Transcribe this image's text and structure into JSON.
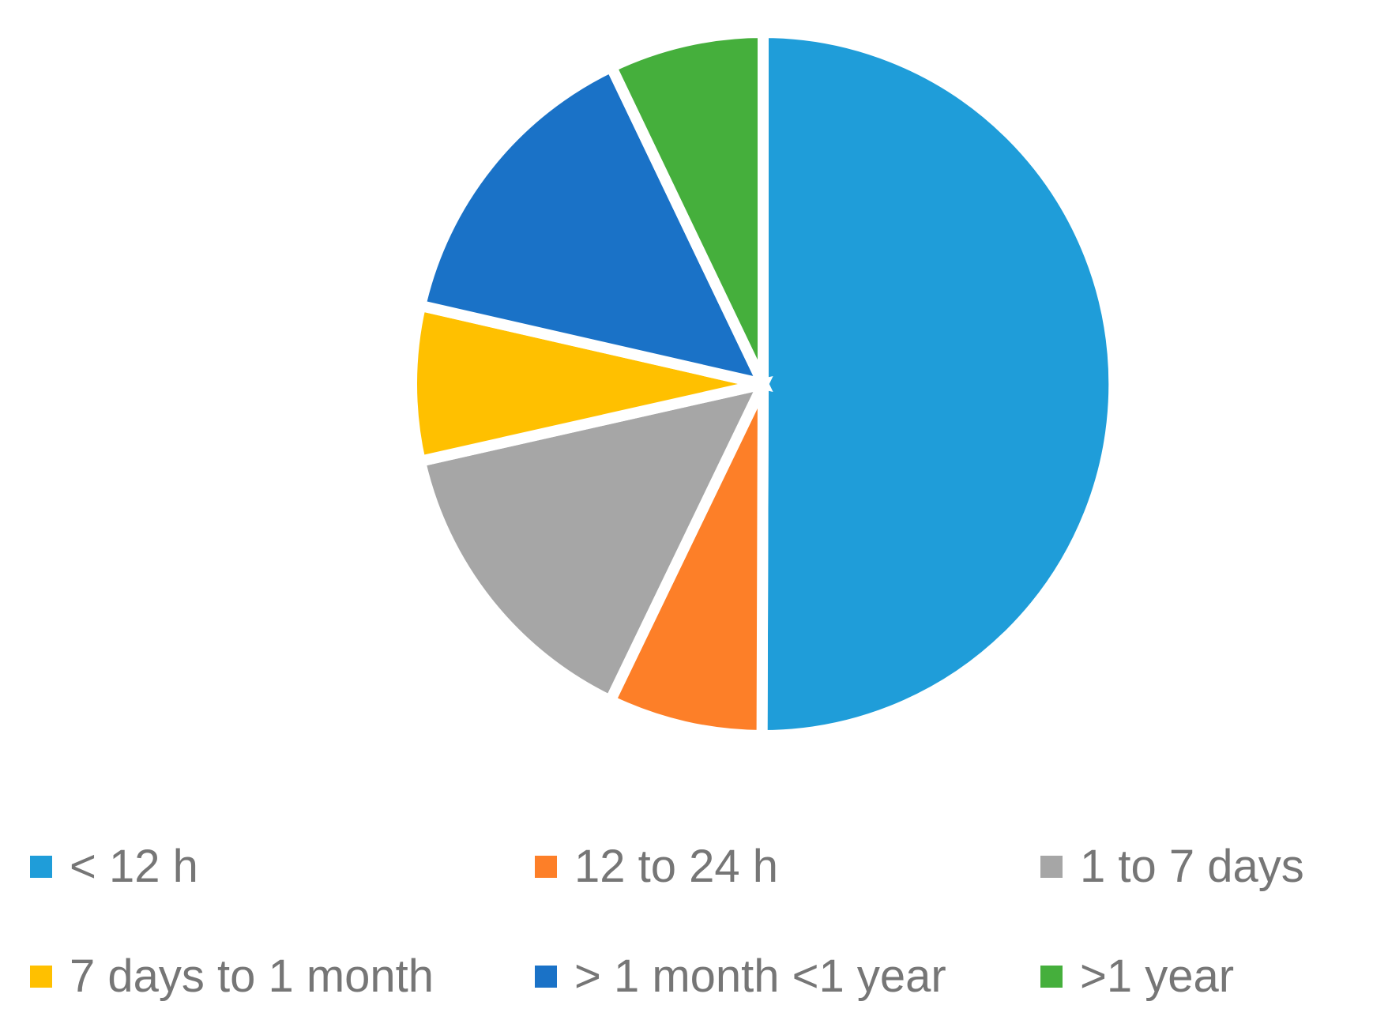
{
  "chart_data": {
    "type": "pie",
    "title": "",
    "categories": [
      "< 12 h",
      "12 to 24 h",
      "1 to 7 days",
      "7 days to 1 month",
      "> 1 month <1 year",
      ">1 year"
    ],
    "values": [
      50,
      7.1,
      14.3,
      7.1,
      14.3,
      7.1
    ],
    "unit": "percent",
    "colors": [
      "#1F9DD9",
      "#FD7F28",
      "#A6A6A6",
      "#FFC000",
      "#1A72C7",
      "#45AF3C"
    ],
    "start_angle": "12 o'clock",
    "direction": "clockwise",
    "legend_position": "bottom"
  }
}
